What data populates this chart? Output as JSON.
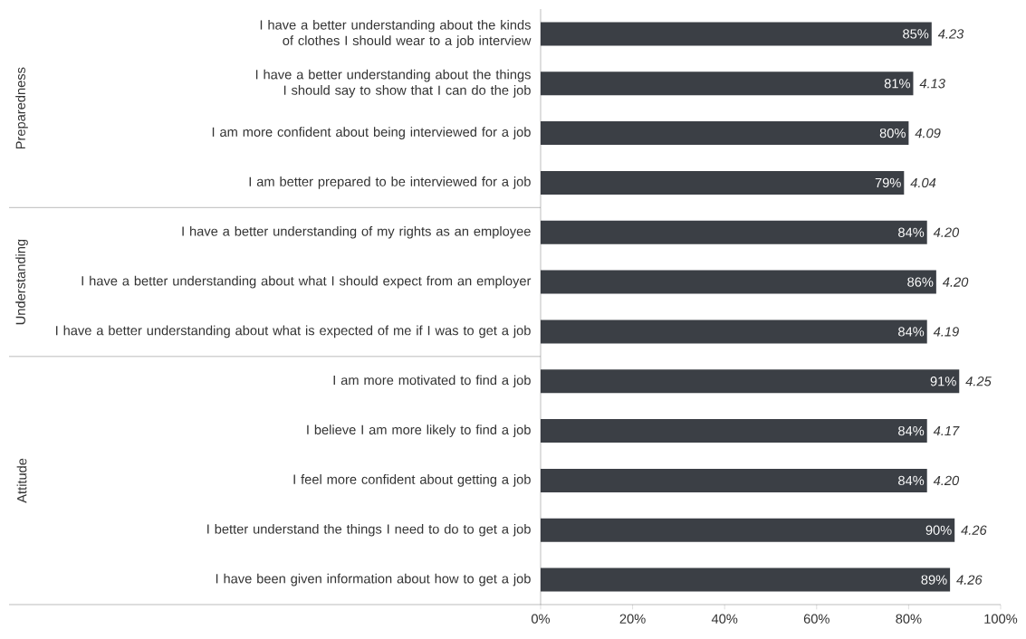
{
  "chart_data": {
    "type": "bar",
    "orientation": "horizontal",
    "categories": [
      "I have a better understanding about the kinds of clothes I should wear to a job interview",
      "I have a better understanding about the things I should say to show that I can do the job",
      "I am more confident about being interviewed for a job",
      "I am better prepared to be interviewed for a job",
      "I have a better understanding of my rights as an employee",
      "I have a better understanding about what I should expect from an employer",
      "I have a better understanding about what is expected of me if I was to get a job",
      "I am more motivated to find a job",
      "I believe I am more likely to find a job",
      "I feel more confident about getting a job",
      "I better understand the things I need to do to get a job",
      "I have been given information about how to get a job"
    ],
    "values": [
      85,
      81,
      80,
      79,
      84,
      86,
      84,
      91,
      84,
      84,
      90,
      89
    ],
    "value_labels": [
      "85%",
      "81%",
      "80%",
      "79%",
      "84%",
      "86%",
      "84%",
      "91%",
      "84%",
      "84%",
      "90%",
      "89%"
    ],
    "color": "#3b3f45",
    "xlim": [
      0,
      100
    ],
    "xticks": [
      {
        "value": 0,
        "label": "0%"
      },
      {
        "value": 20,
        "label": "20%"
      },
      {
        "value": 40,
        "label": "40%"
      },
      {
        "value": 60,
        "label": "60%"
      },
      {
        "value": 80,
        "label": "80%"
      },
      {
        "value": 100,
        "label": "100%"
      }
    ],
    "annotations": [
      "Preparedness",
      "Understanding",
      "Attitude",
      {
        "text": "4.23",
        "x": 85,
        "y": "I have a better understanding about the kinds of clothes I should wear to a job interview"
      },
      {
        "text": "4.13",
        "x": 81,
        "y": "I have a better understanding about the things I should say to show that I can do the job"
      },
      {
        "text": "4.09",
        "x": 80,
        "y": "I am more confident about being interviewed for a job"
      },
      {
        "text": "4.04",
        "x": 79,
        "y": "I am better prepared to be interviewed for a job"
      },
      {
        "text": "4.20",
        "x": 84,
        "y": "I have a better understanding of my rights as an employee"
      },
      {
        "text": "4.20",
        "x": 86,
        "y": "I have a better understanding about what I should expect from an employer"
      },
      {
        "text": "4.19",
        "x": 84,
        "y": "I have a better understanding about what is expected of me if I was to get a job"
      },
      {
        "text": "4.25",
        "x": 91,
        "y": "I am more motivated to find a job"
      },
      {
        "text": "4.17",
        "x": 84,
        "y": "I believe I am more likely to find a job"
      },
      {
        "text": "4.20",
        "x": 84,
        "y": "I feel more confident about getting a job"
      },
      {
        "text": "4.26",
        "x": 90,
        "y": "I better understand the things I need to do to get a job"
      },
      {
        "text": "4.26",
        "x": 89,
        "y": "I have been given information about how to get a job"
      }
    ]
  }
}
